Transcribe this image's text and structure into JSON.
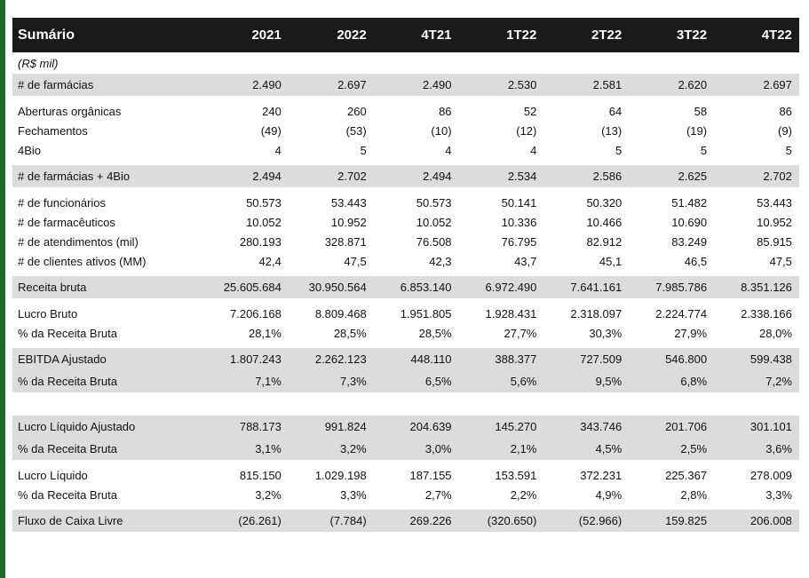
{
  "colors": {
    "header_bg": "#1a1a1a",
    "shade_bg": "#dcdcdc",
    "accent": "#1e6b2a"
  },
  "table": {
    "header": [
      "Sumário",
      "2021",
      "2022",
      "4T21",
      "1T22",
      "2T22",
      "3T22",
      "4T22"
    ],
    "unit": "(R$ mil)",
    "rows": {
      "farmacias": [
        "# de farmácias",
        "2.490",
        "2.697",
        "2.490",
        "2.530",
        "2.581",
        "2.620",
        "2.697"
      ],
      "aberturas": [
        "Aberturas orgânicas",
        "240",
        "260",
        "86",
        "52",
        "64",
        "58",
        "86"
      ],
      "fechamentos": [
        "Fechamentos",
        "(49)",
        "(53)",
        "(10)",
        "(12)",
        "(13)",
        "(19)",
        "(9)"
      ],
      "bio": [
        "4Bio",
        "4",
        "5",
        "4",
        "4",
        "5",
        "5",
        "5"
      ],
      "farmacias_bio": [
        "# de farmácias + 4Bio",
        "2.494",
        "2.702",
        "2.494",
        "2.534",
        "2.586",
        "2.625",
        "2.702"
      ],
      "funcionarios": [
        "# de funcionários",
        "50.573",
        "53.443",
        "50.573",
        "50.141",
        "50.320",
        "51.482",
        "53.443"
      ],
      "farmaceuticos": [
        "# de farmacêuticos",
        "10.052",
        "10.952",
        "10.052",
        "10.336",
        "10.466",
        "10.690",
        "10.952"
      ],
      "atendimentos": [
        "# de atendimentos (mil)",
        "280.193",
        "328.871",
        "76.508",
        "76.795",
        "82.912",
        "83.249",
        "85.915"
      ],
      "clientes": [
        "# de clientes ativos (MM)",
        "42,4",
        "47,5",
        "42,3",
        "43,7",
        "45,1",
        "46,5",
        "47,5"
      ],
      "receita": [
        "Receita bruta",
        "25.605.684",
        "30.950.564",
        "6.853.140",
        "6.972.490",
        "7.641.161",
        "7.985.786",
        "8.351.126"
      ],
      "lucro_bruto": [
        "Lucro Bruto",
        "7.206.168",
        "8.809.468",
        "1.951.805",
        "1.928.431",
        "2.318.097",
        "2.224.774",
        "2.338.166"
      ],
      "lucro_bruto_pct": [
        "% da Receita Bruta",
        "28,1%",
        "28,5%",
        "28,5%",
        "27,7%",
        "30,3%",
        "27,9%",
        "28,0%"
      ],
      "ebitda": [
        "EBITDA Ajustado",
        "1.807.243",
        "2.262.123",
        "448.110",
        "388.377",
        "727.509",
        "546.800",
        "599.438"
      ],
      "ebitda_pct": [
        "% da Receita Bruta",
        "7,1%",
        "7,3%",
        "6,5%",
        "5,6%",
        "9,5%",
        "6,8%",
        "7,2%"
      ],
      "lucro_liq_aj": [
        "Lucro Líquido Ajustado",
        "788.173",
        "991.824",
        "204.639",
        "145.270",
        "343.746",
        "201.706",
        "301.101"
      ],
      "lucro_liq_aj_pct": [
        "% da Receita Bruta",
        "3,1%",
        "3,2%",
        "3,0%",
        "2,1%",
        "4,5%",
        "2,5%",
        "3,6%"
      ],
      "lucro_liq": [
        "Lucro Líquido",
        "815.150",
        "1.029.198",
        "187.155",
        "153.591",
        "372.231",
        "225.367",
        "278.009"
      ],
      "lucro_liq_pct": [
        "% da Receita Bruta",
        "3,2%",
        "3,3%",
        "2,7%",
        "2,2%",
        "4,9%",
        "2,8%",
        "3,3%"
      ],
      "fcl": [
        "Fluxo de Caixa Livre",
        "(26.261)",
        "(7.784)",
        "269.226",
        "(320.650)",
        "(52.966)",
        "159.825",
        "206.008"
      ]
    }
  }
}
